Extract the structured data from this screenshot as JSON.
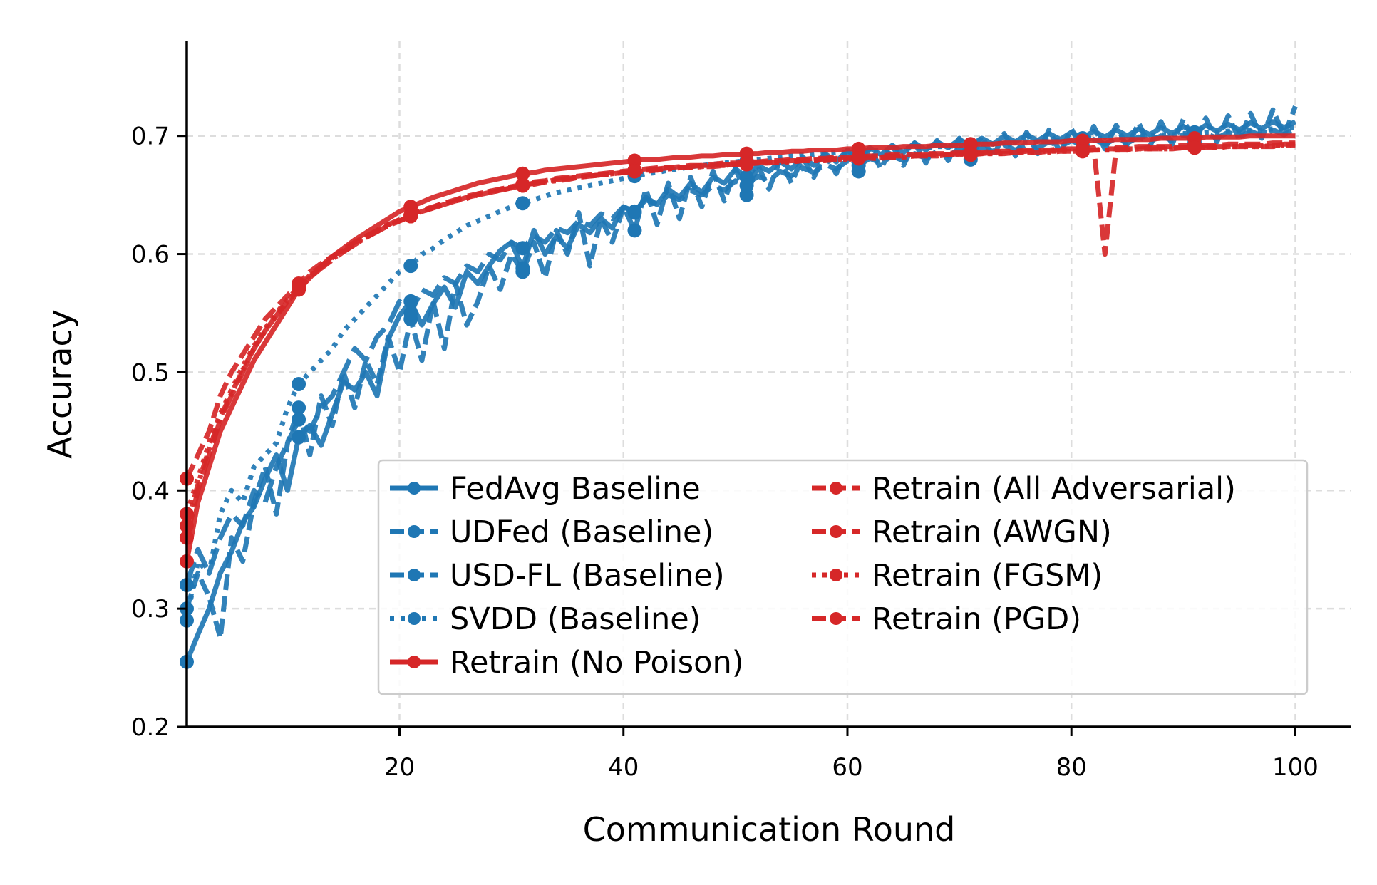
{
  "chart_data": {
    "type": "line",
    "title": "",
    "xlabel": "Communication Round",
    "ylabel": "Accuracy",
    "xlim": [
      1,
      105
    ],
    "ylim": [
      0.2,
      0.78
    ],
    "xticks": [
      20,
      40,
      60,
      80,
      100
    ],
    "yticks": [
      0.2,
      0.3,
      0.4,
      0.5,
      0.6,
      0.7
    ],
    "grid": true,
    "legend_position": "lower-right",
    "legend_columns": 2,
    "series": [
      {
        "name": "FedAvg Baseline",
        "color": "#1f77b4",
        "dash": "solid",
        "values": [
          0.255,
          0.278,
          0.3,
          0.33,
          0.348,
          0.373,
          0.386,
          0.41,
          0.43,
          0.4,
          0.445,
          0.455,
          0.438,
          0.465,
          0.492,
          0.485,
          0.5,
          0.48,
          0.528,
          0.548,
          0.56,
          0.54,
          0.558,
          0.572,
          0.555,
          0.585,
          0.575,
          0.59,
          0.603,
          0.61,
          0.588,
          0.62,
          0.6,
          0.615,
          0.605,
          0.625,
          0.618,
          0.63,
          0.622,
          0.64,
          0.635,
          0.648,
          0.642,
          0.655,
          0.648,
          0.66,
          0.652,
          0.665,
          0.66,
          0.672,
          0.665,
          0.675,
          0.67,
          0.678,
          0.672,
          0.682,
          0.675,
          0.685,
          0.678,
          0.688,
          0.68,
          0.69,
          0.684,
          0.692,
          0.686,
          0.694,
          0.688,
          0.695,
          0.69,
          0.697,
          0.692,
          0.698,
          0.693,
          0.7,
          0.695,
          0.701,
          0.696,
          0.702,
          0.697,
          0.703,
          0.698,
          0.704,
          0.699,
          0.705,
          0.7,
          0.706,
          0.701,
          0.707,
          0.702,
          0.708,
          0.703,
          0.709,
          0.704,
          0.71,
          0.705,
          0.711,
          0.706,
          0.712,
          0.707,
          0.712
        ]
      },
      {
        "name": "UDFed (Baseline)",
        "color": "#1f77b4",
        "dash": "dashed",
        "values": [
          0.3,
          0.33,
          0.31,
          0.275,
          0.36,
          0.34,
          0.39,
          0.42,
          0.38,
          0.44,
          0.47,
          0.43,
          0.48,
          0.455,
          0.5,
          0.47,
          0.51,
          0.49,
          0.53,
          0.5,
          0.545,
          0.51,
          0.56,
          0.52,
          0.575,
          0.54,
          0.56,
          0.59,
          0.57,
          0.6,
          0.585,
          0.61,
          0.58,
          0.62,
          0.6,
          0.635,
          0.59,
          0.63,
          0.61,
          0.64,
          0.62,
          0.655,
          0.625,
          0.66,
          0.63,
          0.665,
          0.64,
          0.67,
          0.645,
          0.672,
          0.65,
          0.675,
          0.655,
          0.68,
          0.66,
          0.682,
          0.665,
          0.685,
          0.668,
          0.688,
          0.67,
          0.69,
          0.672,
          0.692,
          0.675,
          0.694,
          0.677,
          0.696,
          0.679,
          0.698,
          0.68,
          0.7,
          0.682,
          0.702,
          0.683,
          0.703,
          0.685,
          0.705,
          0.686,
          0.706,
          0.688,
          0.708,
          0.689,
          0.709,
          0.69,
          0.711,
          0.691,
          0.712,
          0.693,
          0.714,
          0.694,
          0.715,
          0.695,
          0.717,
          0.697,
          0.719,
          0.698,
          0.722,
          0.7,
          0.725
        ]
      },
      {
        "name": "USD-FL (Baseline)",
        "color": "#1f77b4",
        "dash": "longdash",
        "values": [
          0.32,
          0.35,
          0.33,
          0.36,
          0.38,
          0.37,
          0.4,
          0.39,
          0.42,
          0.44,
          0.46,
          0.45,
          0.47,
          0.48,
          0.5,
          0.52,
          0.51,
          0.53,
          0.54,
          0.56,
          0.55,
          0.57,
          0.565,
          0.58,
          0.575,
          0.59,
          0.585,
          0.6,
          0.595,
          0.61,
          0.605,
          0.615,
          0.61,
          0.622,
          0.618,
          0.628,
          0.624,
          0.634,
          0.63,
          0.64,
          0.636,
          0.646,
          0.642,
          0.65,
          0.646,
          0.654,
          0.65,
          0.658,
          0.654,
          0.662,
          0.658,
          0.666,
          0.662,
          0.67,
          0.666,
          0.673,
          0.669,
          0.676,
          0.672,
          0.679,
          0.675,
          0.681,
          0.677,
          0.683,
          0.679,
          0.685,
          0.681,
          0.687,
          0.683,
          0.689,
          0.685,
          0.69,
          0.687,
          0.692,
          0.688,
          0.693,
          0.69,
          0.695,
          0.691,
          0.696,
          0.692,
          0.697,
          0.693,
          0.698,
          0.694,
          0.699,
          0.695,
          0.7,
          0.696,
          0.701,
          0.697,
          0.702,
          0.698,
          0.703,
          0.699,
          0.704,
          0.7,
          0.705,
          0.701,
          0.706
        ]
      },
      {
        "name": "SVDD (Baseline)",
        "color": "#1f77b4",
        "dash": "dotted",
        "values": [
          0.29,
          0.34,
          0.33,
          0.38,
          0.4,
          0.39,
          0.42,
          0.43,
          0.44,
          0.47,
          0.49,
          0.5,
          0.51,
          0.52,
          0.535,
          0.545,
          0.555,
          0.565,
          0.575,
          0.585,
          0.59,
          0.6,
          0.605,
          0.612,
          0.618,
          0.624,
          0.628,
          0.632,
          0.636,
          0.64,
          0.643,
          0.646,
          0.649,
          0.652,
          0.654,
          0.656,
          0.658,
          0.66,
          0.662,
          0.664,
          0.666,
          0.668,
          0.669,
          0.671,
          0.672,
          0.674,
          0.675,
          0.676,
          0.677,
          0.678,
          0.679,
          0.68,
          0.681,
          0.682,
          0.683,
          0.684,
          0.684,
          0.685,
          0.686,
          0.686,
          0.687,
          0.688,
          0.688,
          0.689,
          0.689,
          0.69,
          0.69,
          0.691,
          0.691,
          0.692,
          0.692,
          0.693,
          0.693,
          0.694,
          0.694,
          0.695,
          0.695,
          0.696,
          0.696,
          0.697,
          0.697,
          0.698,
          0.698,
          0.699,
          0.699,
          0.7,
          0.7,
          0.701,
          0.701,
          0.702,
          0.702,
          0.703,
          0.703,
          0.704,
          0.704,
          0.705,
          0.705,
          0.706,
          0.706,
          0.707
        ]
      },
      {
        "name": "Retrain (No Poison)",
        "color": "#d62728",
        "dash": "solid",
        "values": [
          0.34,
          0.39,
          0.42,
          0.45,
          0.47,
          0.49,
          0.51,
          0.525,
          0.54,
          0.555,
          0.57,
          0.58,
          0.59,
          0.598,
          0.605,
          0.612,
          0.618,
          0.624,
          0.63,
          0.636,
          0.64,
          0.644,
          0.648,
          0.651,
          0.654,
          0.657,
          0.66,
          0.662,
          0.664,
          0.666,
          0.668,
          0.669,
          0.671,
          0.672,
          0.673,
          0.674,
          0.675,
          0.676,
          0.677,
          0.678,
          0.679,
          0.68,
          0.68,
          0.681,
          0.682,
          0.682,
          0.683,
          0.683,
          0.684,
          0.684,
          0.685,
          0.685,
          0.686,
          0.686,
          0.687,
          0.687,
          0.688,
          0.688,
          0.688,
          0.689,
          0.689,
          0.69,
          0.69,
          0.69,
          0.691,
          0.691,
          0.691,
          0.692,
          0.692,
          0.692,
          0.693,
          0.693,
          0.693,
          0.694,
          0.694,
          0.694,
          0.695,
          0.695,
          0.695,
          0.696,
          0.696,
          0.696,
          0.696,
          0.697,
          0.697,
          0.697,
          0.697,
          0.698,
          0.698,
          0.698,
          0.698,
          0.699,
          0.699,
          0.699,
          0.699,
          0.7,
          0.7,
          0.7,
          0.7,
          0.7
        ]
      },
      {
        "name": "Retrain (All Adversarial)",
        "color": "#d62728",
        "dash": "dashed",
        "values": [
          0.41,
          0.43,
          0.45,
          0.48,
          0.5,
          0.515,
          0.53,
          0.545,
          0.555,
          0.565,
          0.575,
          0.585,
          0.592,
          0.598,
          0.604,
          0.61,
          0.615,
          0.62,
          0.625,
          0.629,
          0.633,
          0.637,
          0.64,
          0.643,
          0.646,
          0.649,
          0.651,
          0.653,
          0.655,
          0.657,
          0.659,
          0.661,
          0.662,
          0.664,
          0.665,
          0.666,
          0.667,
          0.668,
          0.669,
          0.67,
          0.671,
          0.672,
          0.673,
          0.673,
          0.674,
          0.675,
          0.675,
          0.676,
          0.677,
          0.677,
          0.678,
          0.678,
          0.679,
          0.679,
          0.68,
          0.68,
          0.681,
          0.681,
          0.682,
          0.682,
          0.682,
          0.683,
          0.683,
          0.684,
          0.684,
          0.684,
          0.685,
          0.685,
          0.685,
          0.686,
          0.686,
          0.686,
          0.687,
          0.687,
          0.687,
          0.688,
          0.688,
          0.688,
          0.689,
          0.689,
          0.689,
          0.69,
          0.6,
          0.69,
          0.69,
          0.691,
          0.691,
          0.691,
          0.691,
          0.692,
          0.692,
          0.692,
          0.692,
          0.693,
          0.693,
          0.693,
          0.693,
          0.694,
          0.694,
          0.694
        ]
      },
      {
        "name": "Retrain (AWGN)",
        "color": "#d62728",
        "dash": "longdash",
        "values": [
          0.36,
          0.4,
          0.43,
          0.46,
          0.48,
          0.5,
          0.52,
          0.535,
          0.548,
          0.56,
          0.57,
          0.58,
          0.588,
          0.595,
          0.602,
          0.608,
          0.614,
          0.619,
          0.624,
          0.628,
          0.632,
          0.636,
          0.639,
          0.642,
          0.645,
          0.648,
          0.65,
          0.652,
          0.654,
          0.656,
          0.658,
          0.66,
          0.661,
          0.663,
          0.664,
          0.665,
          0.666,
          0.667,
          0.668,
          0.669,
          0.67,
          0.671,
          0.672,
          0.673,
          0.673,
          0.674,
          0.675,
          0.675,
          0.676,
          0.676,
          0.677,
          0.677,
          0.678,
          0.678,
          0.679,
          0.679,
          0.68,
          0.68,
          0.681,
          0.681,
          0.681,
          0.682,
          0.682,
          0.683,
          0.683,
          0.683,
          0.684,
          0.684,
          0.684,
          0.685,
          0.685,
          0.685,
          0.686,
          0.686,
          0.686,
          0.687,
          0.687,
          0.687,
          0.688,
          0.688,
          0.688,
          0.688,
          0.689,
          0.689,
          0.689,
          0.689,
          0.69,
          0.69,
          0.69,
          0.69,
          0.691,
          0.691,
          0.691,
          0.691,
          0.692,
          0.692,
          0.692,
          0.692,
          0.693,
          0.693
        ]
      },
      {
        "name": "Retrain (FGSM)",
        "color": "#d62728",
        "dash": "dotted",
        "values": [
          0.38,
          0.41,
          0.44,
          0.465,
          0.485,
          0.505,
          0.522,
          0.537,
          0.55,
          0.562,
          0.572,
          0.582,
          0.59,
          0.597,
          0.603,
          0.609,
          0.615,
          0.62,
          0.625,
          0.629,
          0.633,
          0.637,
          0.64,
          0.643,
          0.646,
          0.648,
          0.651,
          0.653,
          0.655,
          0.657,
          0.658,
          0.66,
          0.661,
          0.663,
          0.664,
          0.665,
          0.666,
          0.667,
          0.668,
          0.669,
          0.67,
          0.671,
          0.671,
          0.672,
          0.673,
          0.673,
          0.674,
          0.675,
          0.675,
          0.676,
          0.676,
          0.677,
          0.677,
          0.678,
          0.678,
          0.679,
          0.679,
          0.68,
          0.68,
          0.68,
          0.681,
          0.681,
          0.682,
          0.682,
          0.682,
          0.683,
          0.683,
          0.683,
          0.684,
          0.684,
          0.684,
          0.685,
          0.685,
          0.685,
          0.686,
          0.686,
          0.686,
          0.687,
          0.687,
          0.687,
          0.687,
          0.688,
          0.688,
          0.688,
          0.688,
          0.689,
          0.689,
          0.689,
          0.689,
          0.69,
          0.69,
          0.69,
          0.69,
          0.691,
          0.691,
          0.691,
          0.691,
          0.692,
          0.692,
          0.692
        ]
      },
      {
        "name": "Retrain (PGD)",
        "color": "#d62728",
        "dash": "dashdot",
        "values": [
          0.37,
          0.405,
          0.435,
          0.462,
          0.482,
          0.502,
          0.52,
          0.535,
          0.548,
          0.56,
          0.571,
          0.581,
          0.589,
          0.596,
          0.602,
          0.608,
          0.614,
          0.619,
          0.624,
          0.628,
          0.632,
          0.636,
          0.639,
          0.642,
          0.645,
          0.647,
          0.65,
          0.652,
          0.654,
          0.656,
          0.658,
          0.659,
          0.661,
          0.662,
          0.663,
          0.665,
          0.666,
          0.667,
          0.668,
          0.669,
          0.67,
          0.67,
          0.671,
          0.672,
          0.673,
          0.673,
          0.674,
          0.674,
          0.675,
          0.676,
          0.676,
          0.677,
          0.677,
          0.678,
          0.678,
          0.679,
          0.679,
          0.679,
          0.68,
          0.68,
          0.681,
          0.681,
          0.681,
          0.682,
          0.682,
          0.683,
          0.683,
          0.683,
          0.684,
          0.684,
          0.684,
          0.685,
          0.685,
          0.685,
          0.686,
          0.686,
          0.686,
          0.686,
          0.687,
          0.687,
          0.687,
          0.688,
          0.688,
          0.688,
          0.688,
          0.689,
          0.689,
          0.689,
          0.689,
          0.69,
          0.69,
          0.69,
          0.69,
          0.691,
          0.691,
          0.691,
          0.691,
          0.691,
          0.692,
          0.692
        ]
      }
    ]
  }
}
